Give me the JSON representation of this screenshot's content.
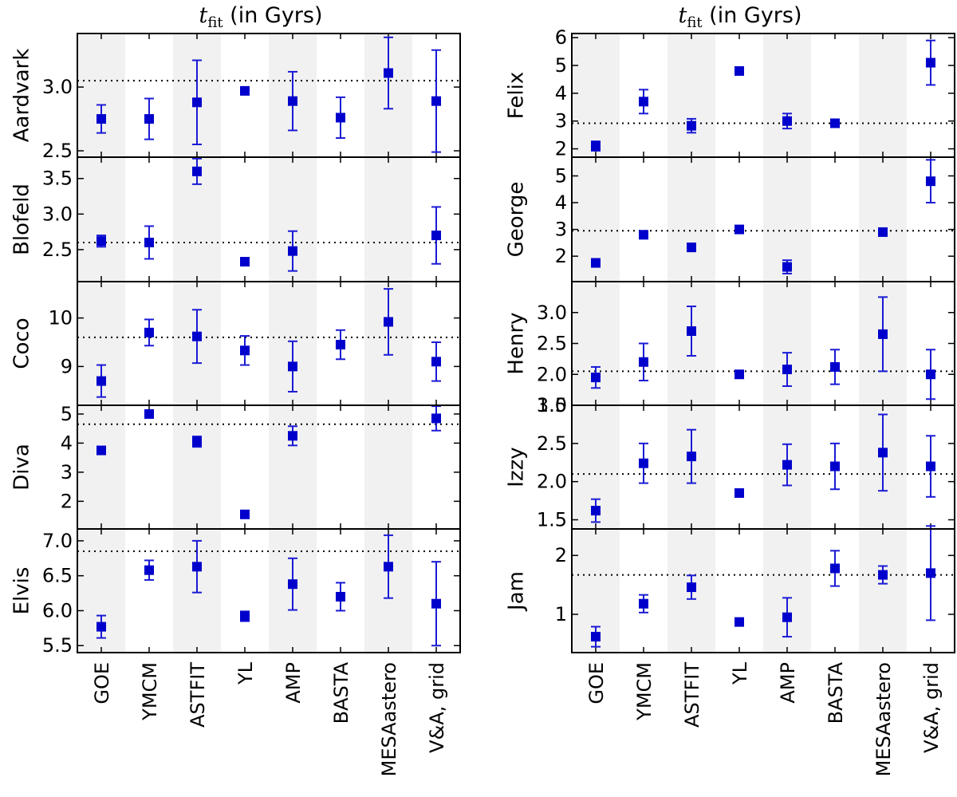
{
  "chart_data": [
    {
      "type": "scatter",
      "title": "t_fit (in Gyrs)",
      "title_symbol": "t",
      "title_subscript": "fit",
      "title_suffix": " (in Gyrs)",
      "categories": [
        "GOE",
        "YMCM",
        "ASTFIT",
        "YL",
        "AMP",
        "BASTA",
        "MESAastero",
        "V&A, grid"
      ],
      "panels": [
        {
          "star": "Aardvark",
          "ylim": [
            2.45,
            3.42
          ],
          "yticks": [
            2.5,
            3.0
          ],
          "tick_labels": [
            "2.5",
            "3.0"
          ],
          "reference": 3.05,
          "values": [
            2.75,
            2.75,
            2.88,
            2.97,
            2.89,
            2.76,
            3.11,
            2.89
          ],
          "err_lo": [
            0.11,
            0.16,
            0.33,
            0.02,
            0.23,
            0.16,
            0.28,
            0.4
          ],
          "err_hi": [
            0.11,
            0.16,
            0.33,
            0.02,
            0.23,
            0.16,
            0.28,
            0.4
          ]
        },
        {
          "star": "Blofeld",
          "ylim": [
            2.05,
            3.8
          ],
          "yticks": [
            2.5,
            3.0,
            3.5
          ],
          "tick_labels": [
            "2.5",
            "3.0",
            "3.5"
          ],
          "reference": 2.6,
          "values": [
            2.62,
            2.6,
            3.6,
            2.33,
            2.48,
            null,
            null,
            2.7
          ],
          "err_lo": [
            0.08,
            0.23,
            0.18,
            0.03,
            0.28,
            null,
            null,
            0.4
          ],
          "err_hi": [
            0.08,
            0.23,
            0.18,
            0.03,
            0.28,
            null,
            null,
            0.4
          ]
        },
        {
          "star": "Coco",
          "ylim": [
            8.2,
            10.75
          ],
          "yticks": [
            9,
            10
          ],
          "tick_labels": [
            "9",
            "10"
          ],
          "reference": 9.6,
          "values": [
            8.7,
            9.7,
            9.62,
            9.33,
            9.0,
            9.45,
            9.92,
            9.1
          ],
          "err_lo": [
            0.33,
            0.27,
            0.55,
            0.3,
            0.52,
            0.3,
            0.68,
            0.4
          ],
          "err_hi": [
            0.33,
            0.27,
            0.55,
            0.3,
            0.52,
            0.3,
            0.68,
            0.4
          ]
        },
        {
          "star": "Diva",
          "ylim": [
            1.05,
            5.3
          ],
          "yticks": [
            2,
            3,
            4,
            5
          ],
          "tick_labels": [
            "2",
            "3",
            "4",
            "5"
          ],
          "reference": 4.65,
          "values": [
            3.75,
            5.0,
            4.05,
            1.55,
            4.25,
            null,
            null,
            4.85
          ],
          "err_lo": [
            0.1,
            0.12,
            0.18,
            0.05,
            0.33,
            null,
            null,
            0.42
          ],
          "err_hi": [
            0.1,
            0.12,
            0.18,
            0.05,
            0.33,
            null,
            null,
            0.42
          ]
        },
        {
          "star": "Elvis",
          "ylim": [
            5.4,
            7.17
          ],
          "yticks": [
            5.5,
            6.0,
            6.5,
            7.0
          ],
          "tick_labels": [
            "5.5",
            "6.0",
            "6.5",
            "7.0"
          ],
          "reference": 6.85,
          "values": [
            5.77,
            6.58,
            6.63,
            5.92,
            6.38,
            6.2,
            6.63,
            6.1
          ],
          "err_lo": [
            0.16,
            0.14,
            0.37,
            0.07,
            0.37,
            0.2,
            0.45,
            0.6
          ],
          "err_hi": [
            0.16,
            0.14,
            0.37,
            0.07,
            0.37,
            0.2,
            0.45,
            0.6
          ]
        },
        {
          "star": "Felix",
          "ylim": [
            1.7,
            6.15
          ],
          "yticks": [
            2,
            3,
            4,
            5,
            6
          ],
          "tick_labels": [
            "2",
            "3",
            "4",
            "5",
            "6"
          ],
          "reference": 2.92,
          "values": [
            2.1,
            3.7,
            2.83,
            4.8,
            3.0,
            2.92,
            null,
            5.1
          ],
          "err_lo": [
            0.17,
            0.43,
            0.25,
            0.1,
            0.27,
            0.1,
            null,
            0.8
          ],
          "err_hi": [
            0.17,
            0.43,
            0.25,
            0.1,
            0.27,
            0.1,
            null,
            0.8
          ]
        },
        {
          "star": "George",
          "ylim": [
            1.05,
            5.7
          ],
          "yticks": [
            2,
            3,
            4,
            5
          ],
          "tick_labels": [
            "2",
            "3",
            "4",
            "5"
          ],
          "reference": 2.95,
          "values": [
            1.75,
            2.8,
            2.33,
            3.0,
            1.6,
            null,
            2.9,
            4.8
          ],
          "err_lo": [
            0.15,
            0.12,
            0.15,
            0.1,
            0.25,
            null,
            0.1,
            0.8
          ],
          "err_hi": [
            0.15,
            0.12,
            0.15,
            0.1,
            0.25,
            null,
            0.1,
            0.8
          ]
        },
        {
          "star": "Henry",
          "ylim": [
            1.5,
            3.5
          ],
          "yticks": [
            1.5,
            2.0,
            2.5,
            3.0
          ],
          "tick_labels": [
            "1.5",
            "2.0",
            "2.5",
            "3.0"
          ],
          "reference": 2.05,
          "values": [
            1.95,
            2.2,
            2.7,
            2.0,
            2.08,
            2.12,
            2.65,
            2.0
          ],
          "err_lo": [
            0.17,
            0.3,
            0.4,
            0.05,
            0.27,
            0.28,
            0.6,
            0.4
          ],
          "err_hi": [
            0.17,
            0.3,
            0.4,
            0.05,
            0.27,
            0.28,
            0.6,
            0.4
          ]
        },
        {
          "star": "Izzy",
          "ylim": [
            1.38,
            3.0
          ],
          "yticks": [
            1.5,
            2.0,
            2.5,
            3.0
          ],
          "tick_labels": [
            "1.5",
            "2.0",
            "2.5",
            "3.0"
          ],
          "reference": 2.1,
          "values": [
            1.62,
            2.24,
            2.33,
            1.85,
            2.22,
            2.2,
            2.38,
            2.2
          ],
          "err_lo": [
            0.15,
            0.26,
            0.35,
            0.03,
            0.27,
            0.3,
            0.5,
            0.4
          ],
          "err_hi": [
            0.15,
            0.26,
            0.35,
            0.03,
            0.27,
            0.3,
            0.5,
            0.4
          ]
        },
        {
          "star": "Jam",
          "ylim": [
            0.35,
            2.45
          ],
          "yticks": [
            1,
            2
          ],
          "tick_labels": [
            "1",
            "2"
          ],
          "reference": 1.67,
          "values": [
            0.62,
            1.18,
            1.46,
            0.87,
            0.95,
            1.78,
            1.67,
            1.7
          ],
          "err_lo": [
            0.17,
            0.15,
            0.2,
            0.05,
            0.33,
            0.3,
            0.15,
            0.8
          ],
          "err_hi": [
            0.17,
            0.15,
            0.2,
            0.05,
            0.33,
            0.3,
            0.15,
            0.8
          ]
        }
      ]
    }
  ],
  "colors": {
    "marker": "#0000cc",
    "errorbar": "#1a1ad6",
    "reference": "#000000",
    "band": "#f1f1f1",
    "axis": "#000000"
  }
}
